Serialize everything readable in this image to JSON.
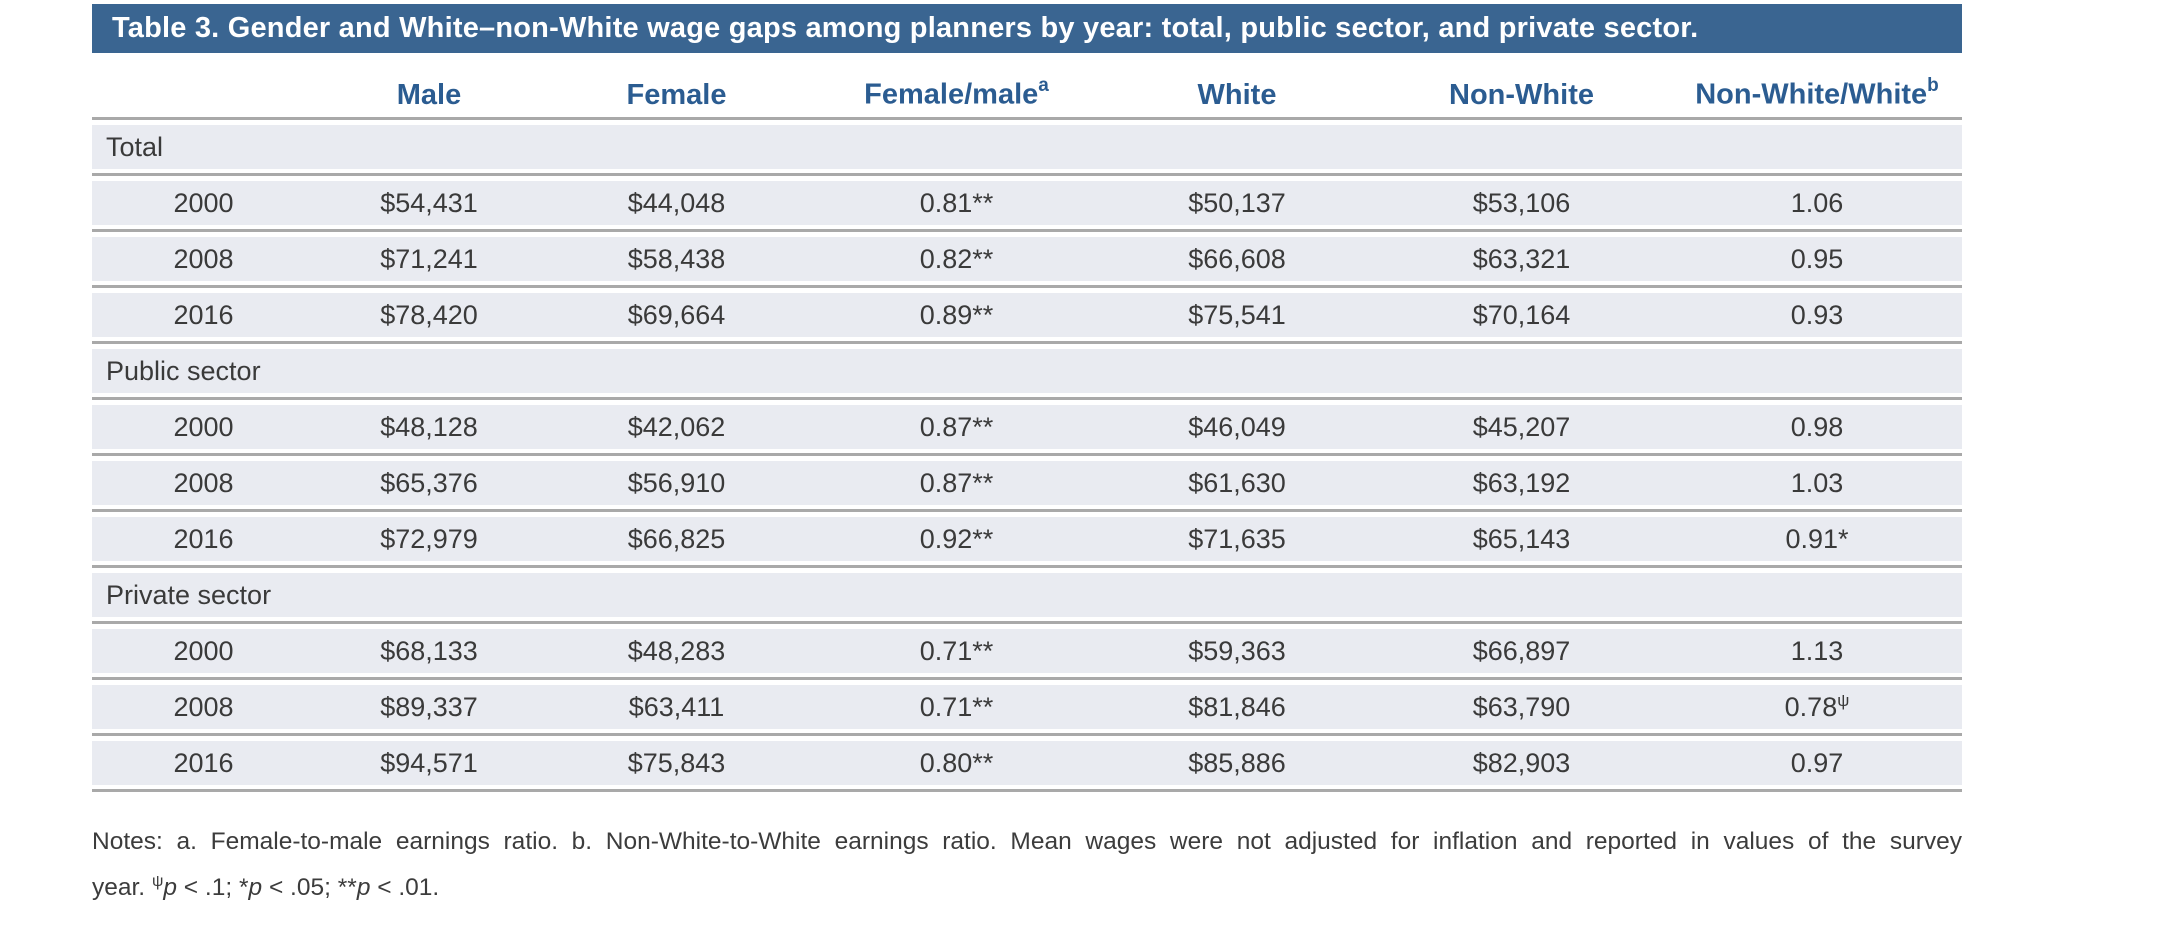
{
  "title": "Table 3. Gender and White–non-White wage gaps among planners by year: total, public sector, and private sector.",
  "colors": {
    "title_bar_bg": "#3a6591",
    "title_text": "#ffffff",
    "header_text": "#2b5c91",
    "row_bg": "#e9ebf1",
    "rule": "#a9a9a9",
    "body_text": "#3a3a3a"
  },
  "columns": [
    {
      "label": "",
      "sup": ""
    },
    {
      "label": "Male",
      "sup": ""
    },
    {
      "label": "Female",
      "sup": ""
    },
    {
      "label": "Female/male",
      "sup": "a"
    },
    {
      "label": "White",
      "sup": ""
    },
    {
      "label": "Non-White",
      "sup": ""
    },
    {
      "label": "Non-White/White",
      "sup": "b"
    }
  ],
  "sections": [
    {
      "label": "Total",
      "rows": [
        {
          "year": "2000",
          "male": "$54,431",
          "female": "$44,048",
          "fm": "0.81**",
          "white": "$50,137",
          "nonwhite": "$53,106",
          "nw": "1.06",
          "nw_sup": ""
        },
        {
          "year": "2008",
          "male": "$71,241",
          "female": "$58,438",
          "fm": "0.82**",
          "white": "$66,608",
          "nonwhite": "$63,321",
          "nw": "0.95",
          "nw_sup": ""
        },
        {
          "year": "2016",
          "male": "$78,420",
          "female": "$69,664",
          "fm": "0.89**",
          "white": "$75,541",
          "nonwhite": "$70,164",
          "nw": "0.93",
          "nw_sup": ""
        }
      ]
    },
    {
      "label": "Public sector",
      "rows": [
        {
          "year": "2000",
          "male": "$48,128",
          "female": "$42,062",
          "fm": "0.87**",
          "white": "$46,049",
          "nonwhite": "$45,207",
          "nw": "0.98",
          "nw_sup": ""
        },
        {
          "year": "2008",
          "male": "$65,376",
          "female": "$56,910",
          "fm": "0.87**",
          "white": "$61,630",
          "nonwhite": "$63,192",
          "nw": "1.03",
          "nw_sup": ""
        },
        {
          "year": "2016",
          "male": "$72,979",
          "female": "$66,825",
          "fm": "0.92**",
          "white": "$71,635",
          "nonwhite": "$65,143",
          "nw": "0.91*",
          "nw_sup": ""
        }
      ]
    },
    {
      "label": "Private sector",
      "rows": [
        {
          "year": "2000",
          "male": "$68,133",
          "female": "$48,283",
          "fm": "0.71**",
          "white": "$59,363",
          "nonwhite": "$66,897",
          "nw": "1.13",
          "nw_sup": ""
        },
        {
          "year": "2008",
          "male": "$89,337",
          "female": "$63,411",
          "fm": "0.71**",
          "white": "$81,846",
          "nonwhite": "$63,790",
          "nw": "0.78",
          "nw_sup": "ψ"
        },
        {
          "year": "2016",
          "male": "$94,571",
          "female": "$75,843",
          "fm": "0.80**",
          "white": "$85,886",
          "nonwhite": "$82,903",
          "nw": "0.97",
          "nw_sup": ""
        }
      ]
    }
  ],
  "notes": {
    "line1": "Notes: a. Female-to-male earnings ratio. b. Non-White-to-White earnings ratio. Mean wages were not adjusted for inflation and reported in values of the survey",
    "line2_prefix": "year. ",
    "sig1_sup": "ψ",
    "sig1_var": "p",
    "sig1_tail": " < .1; ",
    "sig2_star": "*",
    "sig2_var": "p",
    "sig2_tail": " < .05; ",
    "sig3_star": "**",
    "sig3_var": "p",
    "sig3_tail": " < .01."
  }
}
